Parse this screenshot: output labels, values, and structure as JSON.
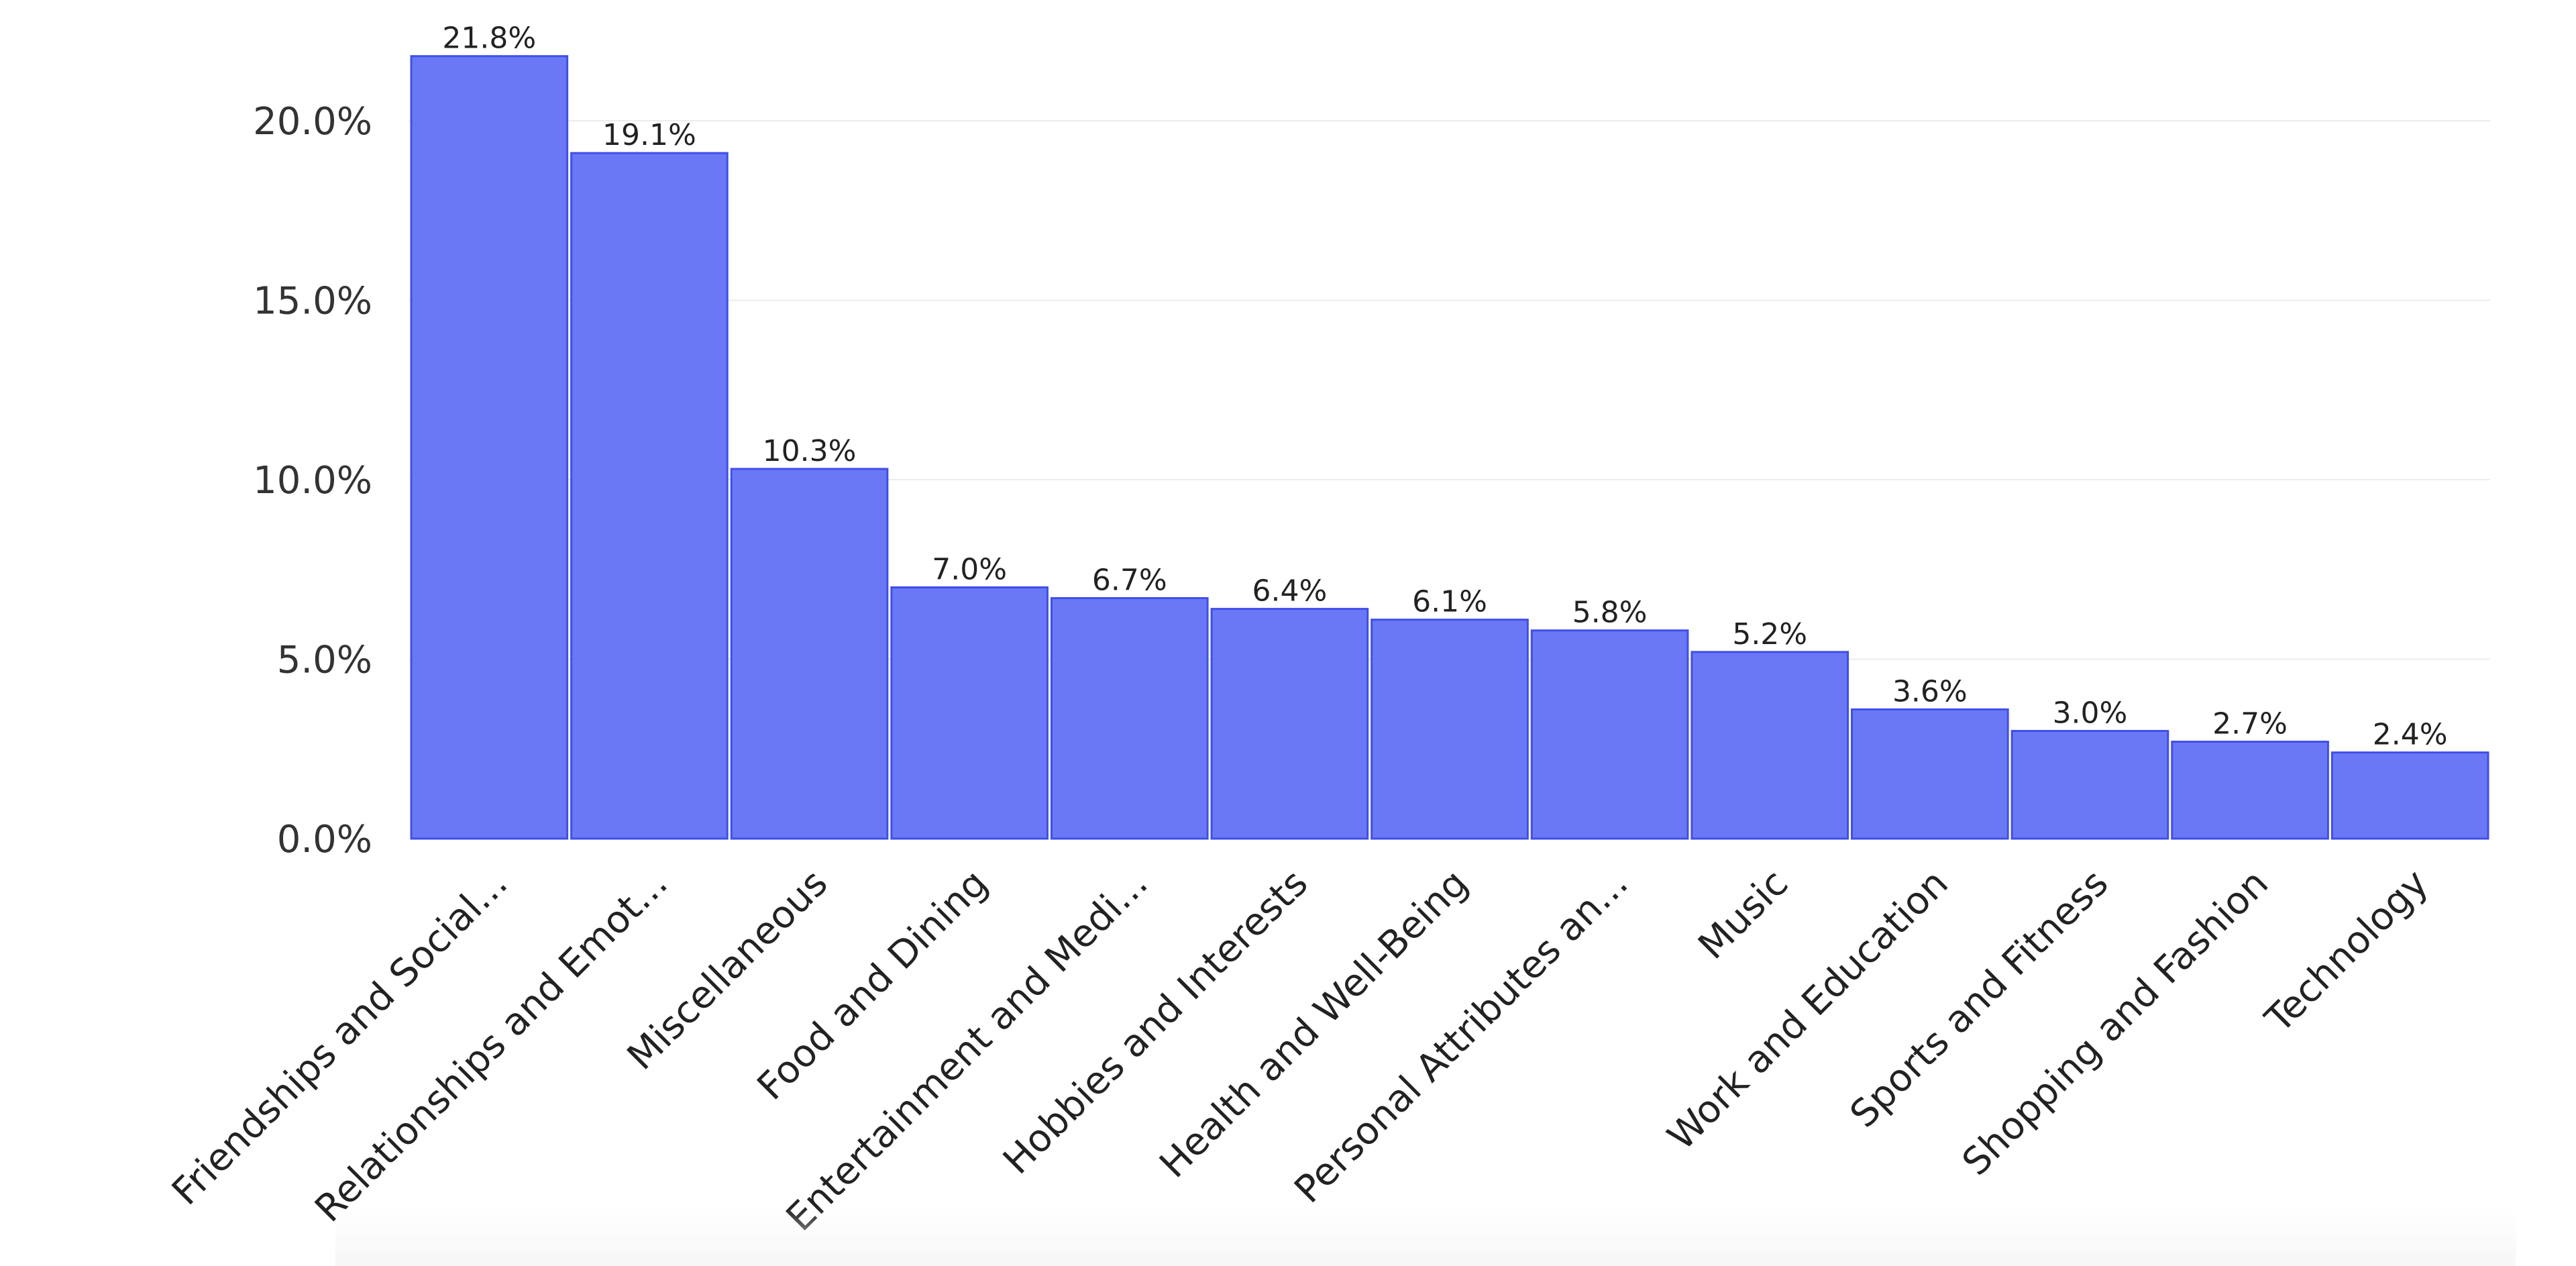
{
  "chart_data": {
    "type": "bar",
    "categories": [
      "Friendships and Social...",
      "Relationships and Emot...",
      "Miscellaneous",
      "Food and Dining",
      "Entertainment and Medi...",
      "Hobbies and Interests",
      "Health and Well-Being",
      "Personal Attributes an...",
      "Music",
      "Work and Education",
      "Sports and Fitness",
      "Shopping and Fashion",
      "Technology"
    ],
    "values": [
      21.8,
      19.1,
      10.3,
      7.0,
      6.7,
      6.4,
      6.1,
      5.8,
      5.2,
      3.6,
      3.0,
      2.7,
      2.4
    ],
    "data_labels": [
      "21.8%",
      "19.1%",
      "10.3%",
      "7.0%",
      "6.7%",
      "6.4%",
      "6.1%",
      "5.8%",
      "5.2%",
      "3.6%",
      "3.0%",
      "2.7%",
      "2.4%"
    ],
    "y_ticks": [
      0,
      5,
      10,
      15,
      20
    ],
    "y_tick_labels": [
      "0.0%",
      "5.0%",
      "10.0%",
      "15.0%",
      "20.0%"
    ],
    "ylim": [
      0,
      22.5
    ],
    "xlabel": "",
    "ylabel": "",
    "grid": "horizontal",
    "legend": "none",
    "bar_color": "#6b78f6",
    "bar_edge_color": "#3f4fe8"
  }
}
